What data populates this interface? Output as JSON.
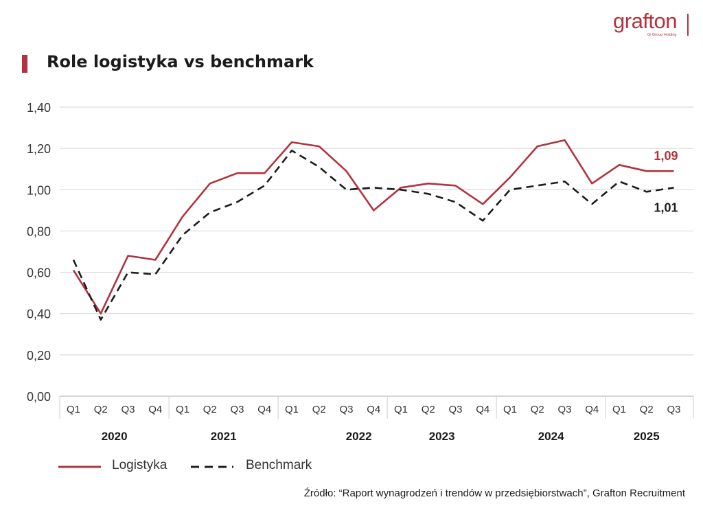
{
  "brand": {
    "name": "grafton",
    "subtitle": "Gi Group Holding",
    "color": "#b2323d"
  },
  "chart_data": {
    "type": "line",
    "title": "Role logistyka vs benchmark",
    "categories": [
      "Q1",
      "Q2",
      "Q3",
      "Q4",
      "Q1",
      "Q2",
      "Q3",
      "Q4",
      "Q1",
      "Q2",
      "Q3",
      "Q4",
      "Q1",
      "Q2",
      "Q3",
      "Q4",
      "Q1",
      "Q2",
      "Q3",
      "Q4",
      "Q1",
      "Q2",
      "Q3"
    ],
    "years": [
      {
        "label": "2020",
        "from": 0,
        "to": 3
      },
      {
        "label": "2021",
        "from": 4,
        "to": 7
      },
      {
        "label": "2022",
        "from": 8,
        "to": 11
      },
      {
        "label": "2023",
        "from": 12,
        "to": 15
      },
      {
        "label": "2024",
        "from": 16,
        "to": 19
      },
      {
        "label": "2025",
        "from": 20,
        "to": 22
      }
    ],
    "ylim": [
      0,
      1.4
    ],
    "yticks": [
      "0,00",
      "0,20",
      "0,40",
      "0,60",
      "0,80",
      "1,00",
      "1,20",
      "1,40"
    ],
    "grid": true,
    "series": [
      {
        "name": "Logistyka",
        "color": "#b2323d",
        "style": "solid",
        "values": [
          0.61,
          0.4,
          0.68,
          0.66,
          0.87,
          1.03,
          1.08,
          1.08,
          1.23,
          1.21,
          1.09,
          0.9,
          1.01,
          1.03,
          1.02,
          0.93,
          1.06,
          1.21,
          1.24,
          1.03,
          1.12,
          1.09,
          1.09
        ],
        "end_label": "1,09"
      },
      {
        "name": "Benchmark",
        "color": "#1b1b1b",
        "style": "dashed",
        "values": [
          0.66,
          0.37,
          0.6,
          0.59,
          0.78,
          0.89,
          0.94,
          1.02,
          1.19,
          1.11,
          1.0,
          1.01,
          1.0,
          0.98,
          0.94,
          0.85,
          1.0,
          1.02,
          1.04,
          0.93,
          1.04,
          0.99,
          1.01
        ],
        "end_label": "1,01"
      }
    ],
    "legend": [
      "Logistyka",
      "Benchmark"
    ],
    "legend_position": "bottom-left"
  },
  "source": "Źródło: “Raport wynagrodzeń i trendów w przedsiębiorstwach”, Grafton Recruitment"
}
